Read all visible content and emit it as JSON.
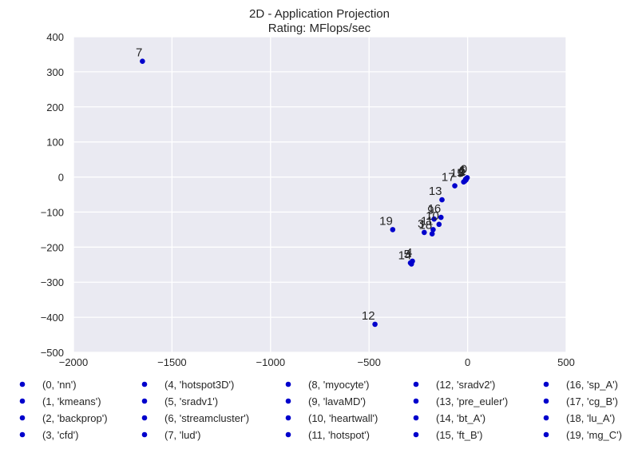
{
  "chart_data": {
    "type": "scatter",
    "title": "2D - Application Projection",
    "subtitle": "Rating: MFlops/sec",
    "xlabel": "",
    "ylabel": "",
    "xlim": [
      -2000,
      500
    ],
    "ylim": [
      -500,
      400
    ],
    "xticks": [
      -2000,
      -1500,
      -1000,
      -500,
      0,
      500
    ],
    "yticks": [
      -500,
      -400,
      -300,
      -200,
      -100,
      0,
      100,
      200,
      300,
      400
    ],
    "xtick_labels": [
      "−2000",
      "−1500",
      "−1000",
      "−500",
      "0",
      "500"
    ],
    "ytick_labels": [
      "−500",
      "−400",
      "−300",
      "−200",
      "−100",
      "0",
      "100",
      "200",
      "300",
      "400"
    ],
    "grid": true,
    "background": "#eaeaf2",
    "grid_color": "#ffffff",
    "point_color": "#0000cc",
    "legend_position": "bottom",
    "points": [
      {
        "id": 0,
        "x": -2,
        "y": -2
      },
      {
        "id": 1,
        "x": -8,
        "y": -8
      },
      {
        "id": 2,
        "x": -12,
        "y": -10
      },
      {
        "id": 3,
        "x": -220,
        "y": -158
      },
      {
        "id": 4,
        "x": -280,
        "y": -240
      },
      {
        "id": 5,
        "x": -290,
        "y": -245
      },
      {
        "id": 6,
        "x": -10,
        "y": -6
      },
      {
        "id": 7,
        "x": -1650,
        "y": 330
      },
      {
        "id": 8,
        "x": -15,
        "y": -12
      },
      {
        "id": 9,
        "x": -170,
        "y": -120
      },
      {
        "id": 10,
        "x": -145,
        "y": -135
      },
      {
        "id": 11,
        "x": -175,
        "y": -150
      },
      {
        "id": 12,
        "x": -470,
        "y": -420
      },
      {
        "id": 13,
        "x": -130,
        "y": -65
      },
      {
        "id": 14,
        "x": -285,
        "y": -248
      },
      {
        "id": 15,
        "x": -20,
        "y": -14
      },
      {
        "id": 16,
        "x": -135,
        "y": -115
      },
      {
        "id": 17,
        "x": -65,
        "y": -25
      },
      {
        "id": 18,
        "x": -180,
        "y": -162
      },
      {
        "id": 19,
        "x": -380,
        "y": -150
      }
    ],
    "legend": [
      "(0, 'nn')",
      "(1, 'kmeans')",
      "(2, 'backprop')",
      "(3, 'cfd')",
      "(4, 'hotspot3D')",
      "(5, 'sradv1')",
      "(6, 'streamcluster')",
      "(7, 'lud')",
      "(8, 'myocyte')",
      "(9, 'lavaMD')",
      "(10, 'heartwall')",
      "(11, 'hotspot')",
      "(12, 'sradv2')",
      "(13, 'pre_euler')",
      "(14, 'bt_A')",
      "(15, 'ft_B')",
      "(16, 'sp_A')",
      "(17, 'cg_B')",
      "(18, 'lu_A')",
      "(19, 'mg_C')"
    ]
  }
}
